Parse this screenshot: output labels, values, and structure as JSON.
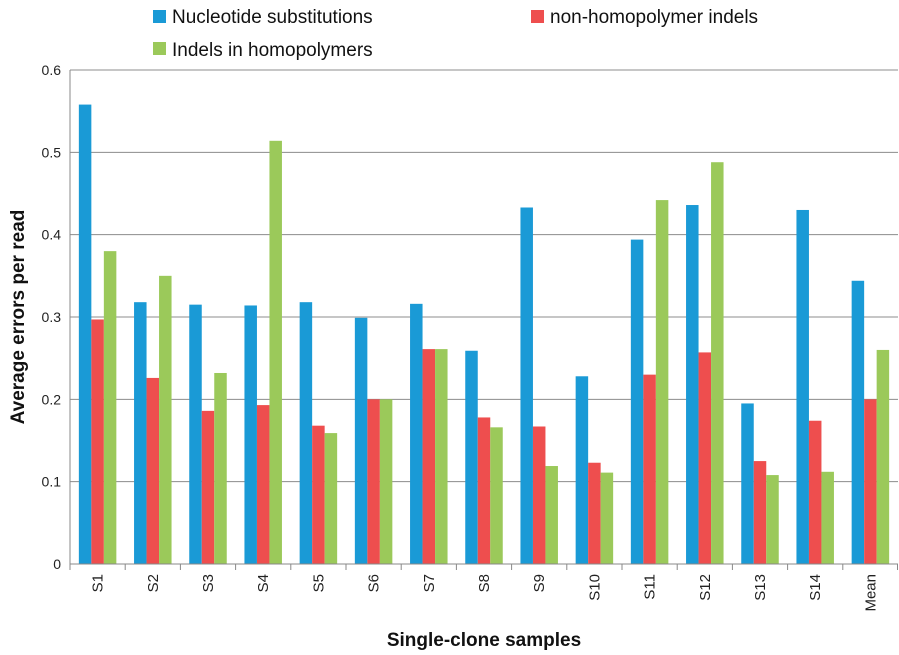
{
  "chart_data": {
    "type": "bar",
    "title": "",
    "xlabel": "Single-clone samples",
    "ylabel": "Average errors per read",
    "ylim": [
      0,
      0.6
    ],
    "yticks": [
      "0",
      "0.1",
      "0.2",
      "0.3",
      "0.4",
      "0.5",
      "0.6"
    ],
    "grid": true,
    "legend_position": "top",
    "categories": [
      "S1",
      "S2",
      "S3",
      "S4",
      "S5",
      "S6",
      "S7",
      "S8",
      "S9",
      "S10",
      "S11",
      "S12",
      "S13",
      "S14",
      "Mean"
    ],
    "series": [
      {
        "name": "Nucleotide substitutions",
        "color": "#1a9ad6",
        "values": [
          0.558,
          0.318,
          0.315,
          0.314,
          0.318,
          0.299,
          0.316,
          0.259,
          0.433,
          0.228,
          0.394,
          0.436,
          0.195,
          0.43,
          0.344
        ]
      },
      {
        "name": "non-homopolymer indels",
        "color": "#ee4e4e",
        "values": [
          0.297,
          0.226,
          0.186,
          0.193,
          0.168,
          0.2,
          0.261,
          0.178,
          0.167,
          0.123,
          0.23,
          0.257,
          0.125,
          0.174,
          0.2
        ]
      },
      {
        "name": "Indels in homopolymers",
        "color": "#9bc95a",
        "values": [
          0.38,
          0.35,
          0.232,
          0.514,
          0.159,
          0.2,
          0.261,
          0.166,
          0.119,
          0.111,
          0.442,
          0.488,
          0.108,
          0.112,
          0.26
        ]
      }
    ]
  }
}
